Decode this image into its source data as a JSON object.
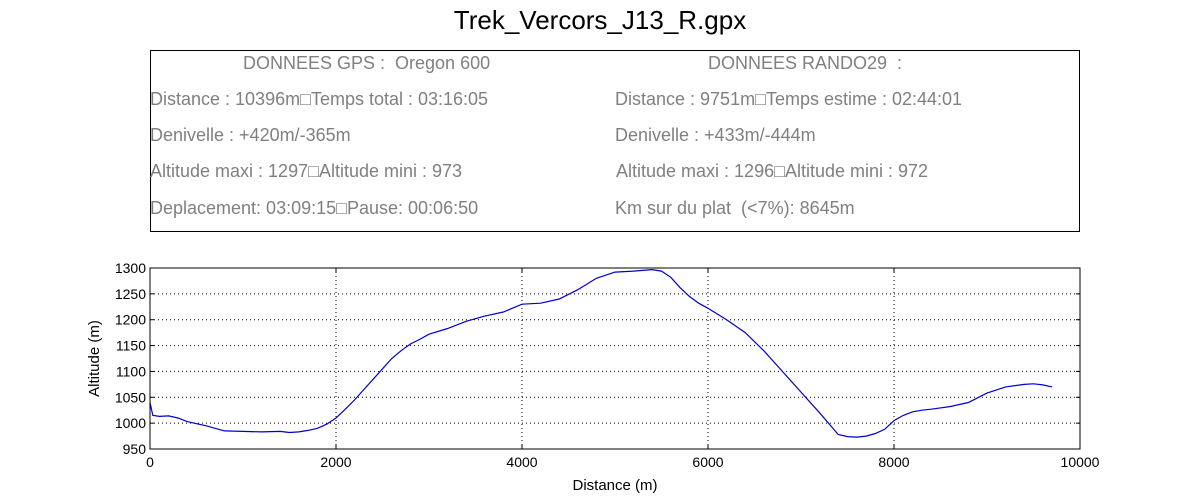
{
  "title": "Trek_Vercors_J13_R.gpx",
  "info": {
    "gps": {
      "header": "DONNEES GPS :  Oregon 600",
      "lines": [
        "Distance : 10396m□Temps total : 03:16:05",
        "Denivelle : +420m/-365m",
        "Altitude maxi : 1297□Altitude mini : 973",
        "Deplacement: 03:09:15□Pause: 00:06:50"
      ]
    },
    "rando": {
      "header": "DONNEES RANDO29  :",
      "lines": [
        "Distance : 9751m□Temps estime : 02:44:01",
        "Denivelle : +433m/-444m",
        "Altitude maxi : 1296□Altitude mini : 972",
        "Km sur du plat  (<7%): 8645m"
      ]
    },
    "text_color": "#808080"
  },
  "chart_data": {
    "type": "line",
    "xlabel": "Distance (m)",
    "ylabel": "Altitude (m)",
    "xlim": [
      0,
      10000
    ],
    "ylim": [
      950,
      1300
    ],
    "xticks": [
      0,
      2000,
      4000,
      6000,
      8000,
      10000
    ],
    "yticks": [
      950,
      1000,
      1050,
      1100,
      1150,
      1200,
      1250,
      1300
    ],
    "grid": true,
    "line_color": "#0000cc",
    "series": [
      {
        "x": [
          0,
          30,
          100,
          200,
          300,
          400,
          500,
          600,
          700,
          800,
          1000,
          1200,
          1400,
          1500,
          1600,
          1700,
          1800,
          1900,
          2000,
          2100,
          2200,
          2300,
          2400,
          2500,
          2600,
          2700,
          2800,
          2900,
          3000,
          3200,
          3400,
          3600,
          3800,
          4000,
          4200,
          4400,
          4600,
          4800,
          5000,
          5200,
          5400,
          5500,
          5600,
          5700,
          5800,
          5900,
          6000,
          6200,
          6400,
          6600,
          6800,
          7000,
          7200,
          7400,
          7500,
          7600,
          7700,
          7800,
          7900,
          8000,
          8100,
          8200,
          8300,
          8400,
          8600,
          8800,
          9000,
          9200,
          9400,
          9500,
          9600,
          9700
        ],
        "y": [
          1040,
          1015,
          1013,
          1014,
          1010,
          1003,
          999,
          995,
          990,
          985,
          984,
          983,
          984,
          982,
          983,
          986,
          990,
          998,
          1010,
          1027,
          1045,
          1065,
          1085,
          1105,
          1125,
          1140,
          1153,
          1162,
          1172,
          1183,
          1197,
          1207,
          1215,
          1230,
          1232,
          1240,
          1258,
          1280,
          1292,
          1294,
          1297,
          1294,
          1282,
          1262,
          1245,
          1232,
          1222,
          1200,
          1175,
          1140,
          1100,
          1060,
          1020,
          978,
          974,
          973,
          975,
          980,
          988,
          1005,
          1015,
          1022,
          1025,
          1027,
          1032,
          1040,
          1058,
          1070,
          1075,
          1076,
          1074,
          1070
        ]
      }
    ]
  }
}
